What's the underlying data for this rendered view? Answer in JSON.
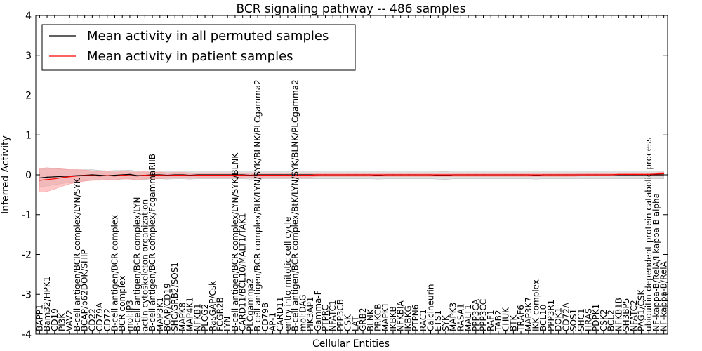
{
  "chart_data": {
    "type": "line",
    "title": "BCR signaling pathway -- 486 samples",
    "xlabel": "Cellular Entities",
    "ylabel": "Inferred Activity",
    "ylim": [
      -4,
      4
    ],
    "yticks": [
      -4,
      -3,
      -2,
      -1,
      0,
      1,
      2,
      3,
      4
    ],
    "legend_position": "top-left",
    "legend": [
      "Mean activity in all permuted samples",
      "Mean activity in patient samples"
    ],
    "colors": {
      "permuted": "#000000",
      "patient": "#ff0000",
      "permuted_band": "#bbbbbb",
      "patient_band": "#ff9999"
    },
    "categories": [
      "BAPP1",
      "Bam32/HPK1",
      "CD19",
      "PI3K",
      "VAV2",
      "B-cell antigen/BCR complex/LYN/SYK",
      "BCAP/p62DOK/SHIP",
      "CD22",
      "CD79A",
      "CD72",
      "B-cell antigen/BCR complex",
      "BCR complex",
      "mol:IP3",
      "B-cell antigen/BCR complex/LYN",
      "actin cytoskeleton organization",
      "B-cell antigen/BCR complex/FcgammaRIIB",
      "MAP3K1",
      "BCAP/CD19",
      "SHC/GRB2/SOS1",
      "MAPK8",
      "MAP4K1",
      "NFKB1",
      "PLCG2",
      "RasGAP/Csk",
      "FCGR2B",
      "LYN",
      "B-cell antigen/BCR complex/LYN/SYK/BLNK",
      "CARD11/BCL10/MALT1/TAK1",
      "PLCgamma2",
      "B-cell antigen/BCR complex/BtK/LYN/SYK/BLNK/PLCgamma2",
      "CD79B",
      "AP-1",
      "CARD11",
      "entry into mitotic cell cycle",
      "B-cell antigen/BCR complex/BtK/LYN/SYK/BLNK/PLCgamma2",
      "mol:DAG",
      "PIK3AP1",
      "Gamma-F",
      "PTPRC",
      "NFATC1",
      "PPP3CB",
      "CSK",
      "LAT",
      "GRB2",
      "BLNK",
      "PRKCB",
      "MAPK1",
      "IKBKB",
      "NFKBIA",
      "IKBKG",
      "PTPN6",
      "RAC1",
      "Calcineurin",
      "ETS1",
      "SYK",
      "MAPK3",
      "RASA1",
      "MALT1",
      "PPP3CA",
      "PPP3CC",
      "RAF1",
      "TAB2",
      "CHUK",
      "BTK",
      "TRAF6",
      "MAP3K7",
      "IKK complex",
      "BCL10",
      "PPP3R1",
      "DOK1",
      "CD72A",
      "SOS1",
      "SHC1",
      "HRAS",
      "PDPK1",
      "CSK2",
      "BCL2",
      "NFKB1B",
      "SH3BP5",
      "NFATC2",
      "PAG1/CSK",
      "ubiquitin-dependent protein catabolic process",
      "NF-kappa-B/RelA/I kappa B alpha",
      "NF-kappa-B/RelA"
    ],
    "x": [
      0,
      1,
      2,
      3,
      4,
      5,
      6,
      7,
      8,
      9,
      10,
      11,
      12,
      13,
      14,
      15,
      16,
      17,
      18,
      19,
      20,
      21,
      22,
      23,
      24,
      25,
      26,
      27,
      28,
      29,
      30,
      31,
      32,
      33,
      34,
      35,
      36,
      37,
      38,
      39,
      40,
      41,
      42,
      43,
      44,
      45,
      46,
      47,
      48,
      49,
      50,
      51,
      52,
      53,
      54,
      55,
      56,
      57,
      58,
      59,
      60,
      61,
      62,
      63,
      64,
      65,
      66,
      67,
      68,
      69,
      70,
      71,
      72,
      73,
      74,
      75,
      76,
      77,
      78,
      79,
      80,
      81,
      82,
      83
    ],
    "series": [
      {
        "name": "Mean activity in all permuted samples",
        "values": [
          -0.08,
          -0.06,
          -0.05,
          -0.04,
          -0.03,
          -0.02,
          -0.01,
          0.0,
          -0.01,
          -0.02,
          -0.01,
          0.0,
          0.01,
          -0.02,
          -0.01,
          0.0,
          0.0,
          -0.01,
          0.0,
          0.0,
          -0.01,
          0.0,
          0.0,
          0.0,
          0.0,
          0.0,
          0.0,
          0.0,
          -0.01,
          0.0,
          0.0,
          0.0,
          0.0,
          0.0,
          0.0,
          0.0,
          0.0,
          0.0,
          0.0,
          0.0,
          0.0,
          0.0,
          0.0,
          0.0,
          0.0,
          -0.01,
          0.0,
          0.0,
          0.0,
          0.0,
          0.0,
          0.0,
          0.0,
          -0.01,
          -0.02,
          0.0,
          0.0,
          0.0,
          0.0,
          0.0,
          0.0,
          0.0,
          0.0,
          0.0,
          0.0,
          0.0,
          -0.01,
          0.0,
          0.0,
          0.0,
          0.0,
          0.0,
          0.0,
          0.0,
          0.0,
          0.0,
          0.0,
          0.0,
          0.0,
          0.0,
          0.0,
          0.0,
          0.0,
          0.0
        ],
        "band": [
          0.22,
          0.22,
          0.2,
          0.18,
          0.16,
          0.15,
          0.14,
          0.13,
          0.12,
          0.12,
          0.12,
          0.11,
          0.11,
          0.11,
          0.11,
          0.1,
          0.1,
          0.1,
          0.1,
          0.1,
          0.1,
          0.1,
          0.1,
          0.1,
          0.1,
          0.1,
          0.1,
          0.1,
          0.1,
          0.1,
          0.1,
          0.1,
          0.1,
          0.1,
          0.1,
          0.1,
          0.1,
          0.1,
          0.1,
          0.1,
          0.1,
          0.1,
          0.1,
          0.1,
          0.1,
          0.1,
          0.1,
          0.1,
          0.1,
          0.1,
          0.1,
          0.1,
          0.1,
          0.1,
          0.1,
          0.1,
          0.1,
          0.1,
          0.1,
          0.1,
          0.1,
          0.1,
          0.1,
          0.1,
          0.1,
          0.1,
          0.1,
          0.1,
          0.1,
          0.1,
          0.1,
          0.1,
          0.1,
          0.1,
          0.1,
          0.1,
          0.1,
          0.1,
          0.1,
          0.1,
          0.1,
          0.1,
          0.1,
          0.1
        ]
      },
      {
        "name": "Mean activity in patient samples",
        "values": [
          -0.14,
          -0.12,
          -0.1,
          -0.07,
          -0.05,
          -0.03,
          -0.02,
          -0.02,
          -0.03,
          -0.02,
          -0.03,
          -0.01,
          -0.02,
          -0.03,
          -0.01,
          -0.02,
          -0.01,
          -0.02,
          -0.01,
          -0.01,
          -0.02,
          -0.01,
          -0.01,
          -0.01,
          -0.01,
          -0.01,
          -0.01,
          -0.01,
          -0.02,
          -0.01,
          -0.01,
          -0.01,
          -0.01,
          -0.01,
          -0.01,
          -0.01,
          -0.01,
          0.0,
          0.0,
          0.0,
          0.0,
          0.0,
          0.0,
          0.0,
          0.0,
          0.0,
          0.0,
          0.0,
          0.0,
          0.0,
          0.0,
          0.0,
          0.0,
          0.0,
          0.0,
          0.0,
          0.0,
          0.0,
          0.0,
          0.0,
          0.0,
          0.0,
          0.0,
          0.0,
          0.0,
          0.0,
          0.0,
          0.0,
          0.0,
          0.0,
          0.0,
          0.0,
          0.0,
          0.0,
          0.0,
          0.0,
          0.0,
          0.01,
          0.01,
          0.01,
          0.01,
          0.01,
          0.02,
          0.03
        ],
        "band": [
          0.3,
          0.3,
          0.26,
          0.22,
          0.18,
          0.16,
          0.14,
          0.12,
          0.11,
          0.1,
          0.1,
          0.09,
          0.09,
          0.1,
          0.09,
          0.08,
          0.08,
          0.07,
          0.07,
          0.07,
          0.07,
          0.06,
          0.06,
          0.06,
          0.06,
          0.06,
          0.06,
          0.06,
          0.06,
          0.06,
          0.05,
          0.05,
          0.05,
          0.05,
          0.05,
          0.05,
          0.05,
          0.04,
          0.04,
          0.04,
          0.04,
          0.04,
          0.04,
          0.04,
          0.04,
          0.04,
          0.04,
          0.04,
          0.04,
          0.04,
          0.04,
          0.04,
          0.04,
          0.04,
          0.04,
          0.04,
          0.04,
          0.04,
          0.04,
          0.04,
          0.04,
          0.04,
          0.04,
          0.04,
          0.04,
          0.04,
          0.04,
          0.04,
          0.04,
          0.04,
          0.04,
          0.04,
          0.03,
          0.03,
          0.03,
          0.03,
          0.03,
          0.03,
          0.03,
          0.03,
          0.03,
          0.03,
          0.03,
          0.04
        ]
      }
    ]
  }
}
